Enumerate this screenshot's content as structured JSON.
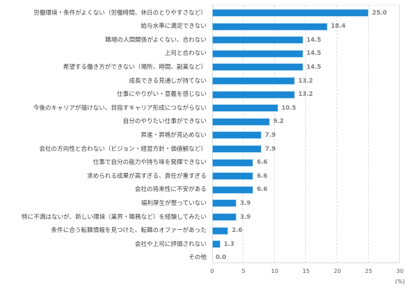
{
  "chart_data": {
    "type": "bar",
    "orientation": "horizontal",
    "title": "",
    "xlabel": "(%)",
    "ylabel": "",
    "xlim": [
      0,
      30
    ],
    "x_ticks": [
      0,
      5,
      10,
      15,
      20,
      25,
      30
    ],
    "grid": "vertical dashed",
    "legend": "none",
    "bar_color": "#1a88d2",
    "categories": [
      "労働環境・条件がよくない（労働時間、休日のとりやすさなど）",
      "給与水準に満足できない",
      "職場の人間関係がよくない、合わない",
      "上司と合わない",
      "希望する働き方ができない（場所、時間、副業など）",
      "成長できる見通しが持てない",
      "仕事にやりがい・意義を感じない",
      "今後のキャリアが描けない、目指すキャリア形成につながらない",
      "自分のやりたい仕事ができない",
      "昇進・昇格が見込めない",
      "会社の方向性と合わない（ビジョン・経営方針・価値観など）",
      "仕事で自分の能力や持ち味を発揮できない",
      "求められる成果が高すぎる、責任が重すぎる",
      "会社の将来性に不安がある",
      "福利厚生が整っていない",
      "特に不満はないが、新しい環境（業界・職務など）を経験してみたい",
      "条件に合う転職情報を見つけた、転職のオファーがあった",
      "会社や上司に評価されない",
      "その他"
    ],
    "values": [
      25.0,
      18.4,
      14.5,
      14.5,
      14.5,
      13.2,
      13.2,
      10.5,
      9.2,
      7.9,
      7.9,
      6.6,
      6.6,
      6.6,
      3.9,
      3.9,
      2.6,
      1.3,
      0.0
    ],
    "value_labels": [
      "25.0",
      "18.4",
      "14.5",
      "14.5",
      "14.5",
      "13.2",
      "13.2",
      "10.5",
      "9.2",
      "7.9",
      "7.9",
      "6.6",
      "6.6",
      "6.6",
      "3.9",
      "3.9",
      "2.6",
      "1.3",
      "0.0"
    ],
    "x_tick_labels": [
      "0",
      "5",
      "10",
      "15",
      "20",
      "25",
      "30"
    ],
    "unit_label": "(%)"
  }
}
